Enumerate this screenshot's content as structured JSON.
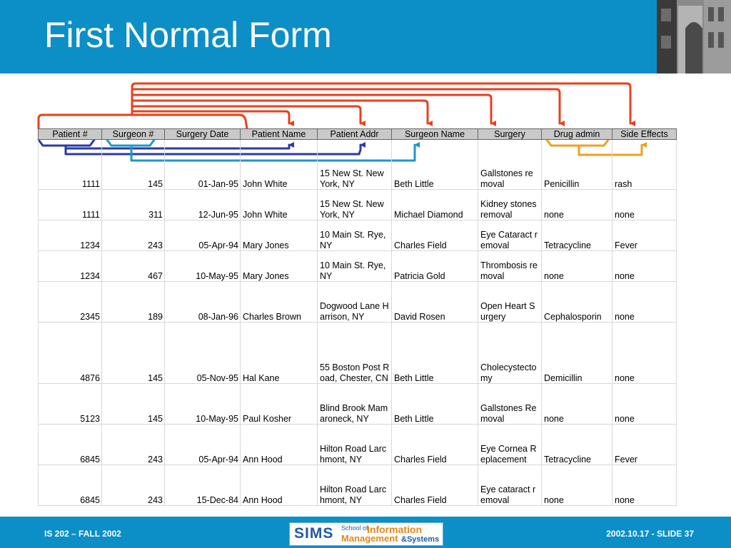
{
  "slide": {
    "title": "First Normal Form",
    "footer_left": "IS 202 – FALL 2002",
    "footer_right": "2002.10.17 - SLIDE 37"
  },
  "logo": {
    "sims": "SIMS",
    "school_of": "School of",
    "information": "Information",
    "management": "Management",
    "systems": "&Systems"
  },
  "table": {
    "headers": [
      "Patient #",
      "Surgeon #",
      "Surgery Date",
      "Patient Name",
      "Patient Addr",
      "Surgeon Name",
      "Surgery",
      "Drug admin",
      "Side Effects"
    ],
    "rows": [
      [
        "1111",
        "145",
        "01-Jan-95",
        "John White",
        "15 New St. New York, NY",
        "Beth Little",
        "Gallstones removal",
        "Penicillin",
        "rash"
      ],
      [
        "1111",
        "311",
        "12-Jun-95",
        "John White",
        "15 New St. New York, NY",
        "Michael Diamond",
        "Kidney stones removal",
        "none",
        "none"
      ],
      [
        "1234",
        "243",
        "05-Apr-94",
        "Mary Jones",
        "10 Main St. Rye, NY",
        "Charles Field",
        "Eye Cataract removal",
        "Tetracycline",
        "Fever"
      ],
      [
        "1234",
        "467",
        "10-May-95",
        "Mary Jones",
        "10 Main St. Rye, NY",
        "Patricia Gold",
        "Thrombosis removal",
        "none",
        "none"
      ],
      [
        "2345",
        "189",
        "08-Jan-96",
        "Charles Brown",
        "Dogwood Lane Harrison, NY",
        "David Rosen",
        "Open Heart Surgery",
        "Cephalosporin",
        "none"
      ],
      [
        "4876",
        "145",
        "05-Nov-95",
        "Hal Kane",
        "55 Boston Post Road, Chester, CN",
        "Beth Little",
        "Cholecystectomy",
        "Demicillin",
        "none"
      ],
      [
        "5123",
        "145",
        "10-May-95",
        "Paul Kosher",
        "Blind Brook Mamaroneck, NY",
        "Beth Little",
        "Gallstones Removal",
        "none",
        "none"
      ],
      [
        "6845",
        "243",
        "05-Apr-94",
        "Ann Hood",
        "Hilton Road Larchmont, NY",
        "Charles Field",
        "Eye Cornea Replacement",
        "Tetracycline",
        "Fever"
      ],
      [
        "6845",
        "243",
        "15-Dec-84",
        "Ann Hood",
        "Hilton Road Larchmont, NY",
        "Charles Field",
        "Eye cataract removal",
        "none",
        "none"
      ]
    ]
  },
  "colors": {
    "header_bg": "#0b8fc6",
    "arrow_red": "#e8401c",
    "arrow_navy": "#2b3aa8",
    "arrow_teal": "#1c98c8",
    "arrow_orange": "#f0a020",
    "header_cell_bg": "#c9c9c9"
  },
  "icons": {
    "photo": "building-photo",
    "logo": "sims-logo"
  }
}
